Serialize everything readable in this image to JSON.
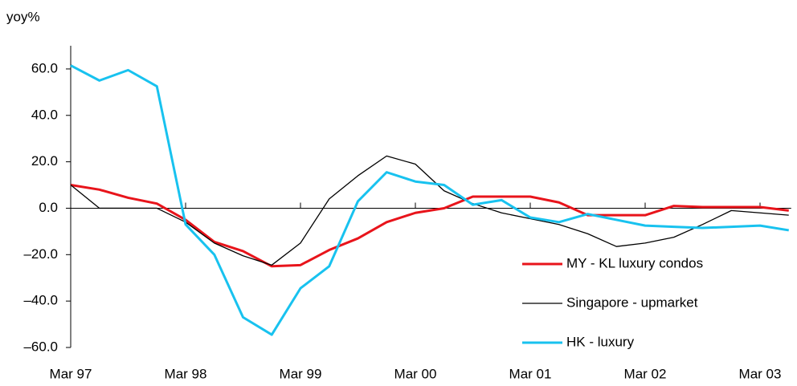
{
  "chart_data": {
    "type": "line",
    "y_label": "yoy%",
    "categories": [
      "Mar 97",
      null,
      null,
      null,
      "Mar 98",
      null,
      null,
      null,
      "Mar 99",
      null,
      null,
      null,
      "Mar 00",
      null,
      null,
      null,
      "Mar 01",
      null,
      null,
      null,
      "Mar 02",
      null,
      null,
      null,
      "Mar 03",
      null
    ],
    "series": [
      {
        "name": "MY - KL luxury condos",
        "color": "#e8141b",
        "width": 3,
        "values": [
          10,
          8,
          4.5,
          2,
          -5,
          -14.5,
          -18.5,
          -25,
          -24.5,
          -18,
          -13,
          -6,
          -2,
          0,
          5,
          5,
          5,
          2.5,
          -3,
          -3,
          -3,
          1,
          0.5,
          0.5,
          0.5,
          -1
        ]
      },
      {
        "name": "Singapore - upmarket",
        "color": "#000000",
        "width": 1.3,
        "values": [
          10,
          0,
          0,
          0,
          -6,
          -15,
          -20.5,
          -24.5,
          -15,
          4,
          14,
          22.5,
          19,
          7.5,
          2,
          -2,
          -4.5,
          -7,
          -11,
          -16.5,
          -15,
          -12.5,
          -7,
          -1,
          -2,
          -3
        ]
      },
      {
        "name": "HK - luxury",
        "color": "#18c2ef",
        "width": 3,
        "values": [
          61.5,
          55,
          59.5,
          52.5,
          -7,
          -20,
          -47,
          -54.5,
          -34.5,
          -25,
          3,
          15.5,
          11.5,
          10,
          1.5,
          3.5,
          -4,
          -6,
          -2.5,
          -5,
          -7.5,
          -8,
          -8.5,
          -8,
          -7.5,
          -9.5
        ]
      }
    ],
    "ylim": [
      -60,
      70
    ],
    "yticks": [
      {
        "value": -60,
        "label": "–60.0"
      },
      {
        "value": -40,
        "label": "–40.0"
      },
      {
        "value": -20,
        "label": "–20.0"
      },
      {
        "value": 0,
        "label": "0.0"
      },
      {
        "value": 20,
        "label": "20.0"
      },
      {
        "value": 40,
        "label": "40.0"
      },
      {
        "value": 60,
        "label": "60.0"
      }
    ],
    "legend": "lower right"
  }
}
